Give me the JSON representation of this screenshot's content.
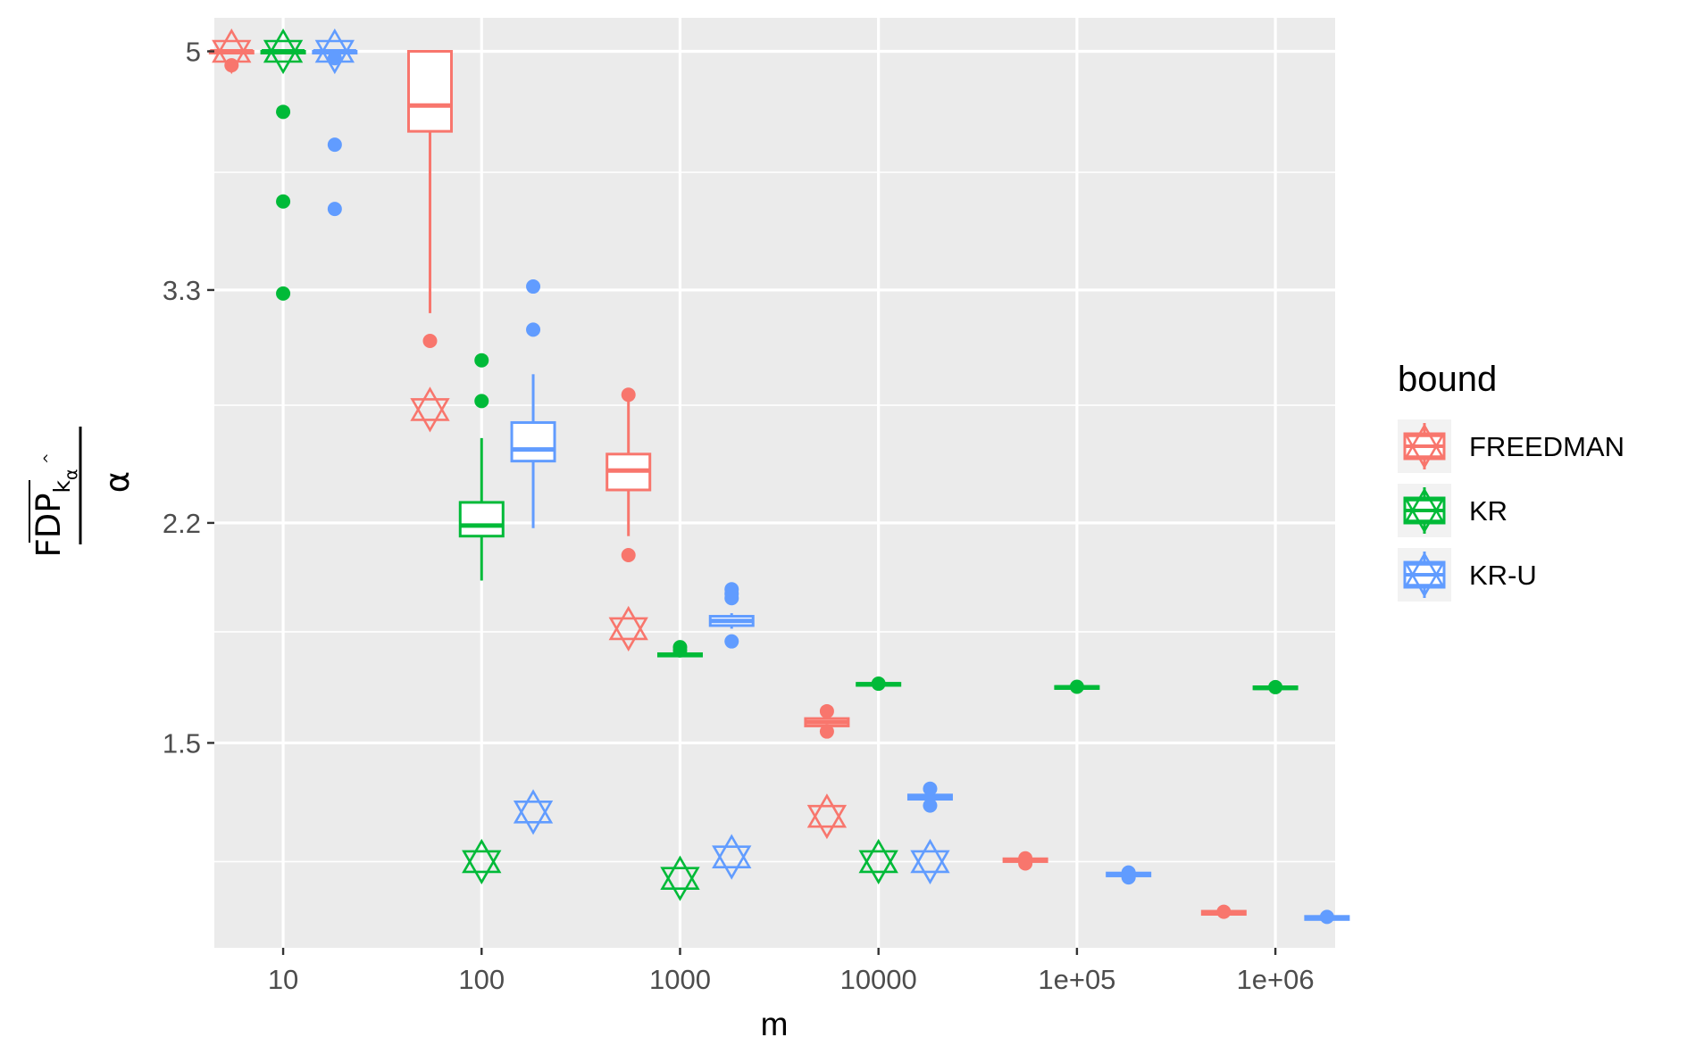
{
  "chart_data": {
    "type": "boxplot",
    "xlabel": "m",
    "ylabel": {
      "numerator": "FDP",
      "subscript": "k",
      "subscript_hat": "^",
      "sub_subscript": "α",
      "denominator": "α"
    },
    "x_scale": "log10",
    "y_scale": "log",
    "x_ticks": [
      {
        "value": 10,
        "label": "10"
      },
      {
        "value": 100,
        "label": "100"
      },
      {
        "value": 1000,
        "label": "1000"
      },
      {
        "value": 10000,
        "label": "10000"
      },
      {
        "value": 100000,
        "label": "1e+05"
      },
      {
        "value": 1000000,
        "label": "1e+06"
      }
    ],
    "y_ticks": [
      {
        "value": 1.5,
        "label": "1.5"
      },
      {
        "value": 2.2,
        "label": "2.2"
      },
      {
        "value": 3.3,
        "label": "3.3"
      },
      {
        "value": 5,
        "label": "5"
      }
    ],
    "y_minor_ticks": [
      1.22,
      1.82,
      2.7,
      4.05
    ],
    "xlim": [
      4.5,
      2000000
    ],
    "ylim": [
      1.05,
      5.3
    ],
    "grid": true,
    "legend": {
      "title": "bound",
      "position": "right"
    },
    "series": [
      {
        "name": "FREEDMAN",
        "color": "#F8766D",
        "groups": [
          {
            "m": 10,
            "box": {
              "q1": 5.0,
              "median": 5.0,
              "q3": 5.0,
              "whisker_low": 5.0,
              "whisker_high": 5.0
            },
            "outliers": [
              4.88
            ],
            "star": 5.0
          },
          {
            "m": 100,
            "box": {
              "q1": 4.35,
              "median": 4.55,
              "q3": 5.0,
              "whisker_low": 3.17,
              "whisker_high": 5.0
            },
            "outliers": [
              3.02
            ],
            "star": 2.68
          },
          {
            "m": 1000,
            "box": {
              "q1": 2.33,
              "median": 2.41,
              "q3": 2.48,
              "whisker_low": 2.15,
              "whisker_high": 2.75
            },
            "outliers": [
              2.75,
              2.08
            ],
            "star": 1.83
          },
          {
            "m": 10000,
            "box": {
              "q1": 1.545,
              "median": 1.555,
              "q3": 1.565,
              "whisker_low": 1.545,
              "whisker_high": 1.565
            },
            "outliers": [
              1.585,
              1.53
            ],
            "star": 1.32
          },
          {
            "m": 100000,
            "box": {
              "q1": 1.22,
              "median": 1.223,
              "q3": 1.226,
              "whisker_low": 1.218,
              "whisker_high": 1.228
            },
            "outliers": [
              1.227,
              1.216
            ],
            "star": null
          },
          {
            "m": 1000000,
            "box": {
              "q1": 1.113,
              "median": 1.116,
              "q3": 1.119,
              "whisker_low": 1.111,
              "whisker_high": 1.121
            },
            "outliers": [
              1.118
            ],
            "star": null
          }
        ]
      },
      {
        "name": "KR",
        "color": "#00BA38",
        "groups": [
          {
            "m": 10,
            "box": {
              "q1": 5.0,
              "median": 5.0,
              "q3": 5.0,
              "whisker_low": 5.0,
              "whisker_high": 5.0
            },
            "outliers": [
              4.5,
              3.85,
              3.28
            ],
            "star": 5.0
          },
          {
            "m": 100,
            "box": {
              "q1": 2.15,
              "median": 2.19,
              "q3": 2.28,
              "whisker_low": 1.99,
              "whisker_high": 2.55
            },
            "outliers": [
              2.92,
              2.72
            ],
            "star": 1.22
          },
          {
            "m": 1000,
            "box": {
              "q1": 1.745,
              "median": 1.748,
              "q3": 1.752,
              "whisker_low": 1.745,
              "whisker_high": 1.752
            },
            "outliers": [
              1.772,
              1.762
            ],
            "star": 1.185
          },
          {
            "m": 10000,
            "box": {
              "q1": 1.658,
              "median": 1.661,
              "q3": 1.664,
              "whisker_low": 1.656,
              "whisker_high": 1.666
            },
            "outliers": [
              1.663
            ],
            "star": 1.22
          },
          {
            "m": 100000,
            "box": {
              "q1": 1.649,
              "median": 1.652,
              "q3": 1.655,
              "whisker_low": 1.647,
              "whisker_high": 1.657
            },
            "outliers": [
              1.654
            ],
            "star": null
          },
          {
            "m": 1000000,
            "box": {
              "q1": 1.648,
              "median": 1.651,
              "q3": 1.654,
              "whisker_low": 1.646,
              "whisker_high": 1.656
            },
            "outliers": [
              1.653
            ],
            "star": null
          }
        ]
      },
      {
        "name": "KR-U",
        "color": "#619CFF",
        "groups": [
          {
            "m": 10,
            "box": {
              "q1": 5.0,
              "median": 5.0,
              "q3": 5.0,
              "whisker_low": 5.0,
              "whisker_high": 5.0
            },
            "outliers": [
              4.94,
              4.25,
              3.8
            ],
            "star": 5.0
          },
          {
            "m": 100,
            "box": {
              "q1": 2.45,
              "median": 2.5,
              "q3": 2.62,
              "whisker_low": 2.18,
              "whisker_high": 2.85
            },
            "outliers": [
              3.32,
              3.08
            ],
            "star": 1.33
          },
          {
            "m": 1000,
            "box": {
              "q1": 1.84,
              "median": 1.855,
              "q3": 1.87,
              "whisker_low": 1.83,
              "whisker_high": 1.88
            },
            "outliers": [
              1.96,
              1.945,
              1.93,
              1.79
            ],
            "star": 1.23
          },
          {
            "m": 10000,
            "box": {
              "q1": 1.36,
              "median": 1.365,
              "q3": 1.37,
              "whisker_low": 1.36,
              "whisker_high": 1.37
            },
            "outliers": [
              1.385,
              1.345
            ],
            "star": 1.22
          },
          {
            "m": 100000,
            "box": {
              "q1": 1.19,
              "median": 1.193,
              "q3": 1.196,
              "whisker_low": 1.188,
              "whisker_high": 1.198
            },
            "outliers": [
              1.197,
              1.187
            ],
            "star": null
          },
          {
            "m": 1000000,
            "box": {
              "q1": 1.103,
              "median": 1.106,
              "q3": 1.109,
              "whisker_low": 1.101,
              "whisker_high": 1.111
            },
            "outliers": [
              1.108
            ],
            "star": null
          }
        ]
      }
    ]
  }
}
